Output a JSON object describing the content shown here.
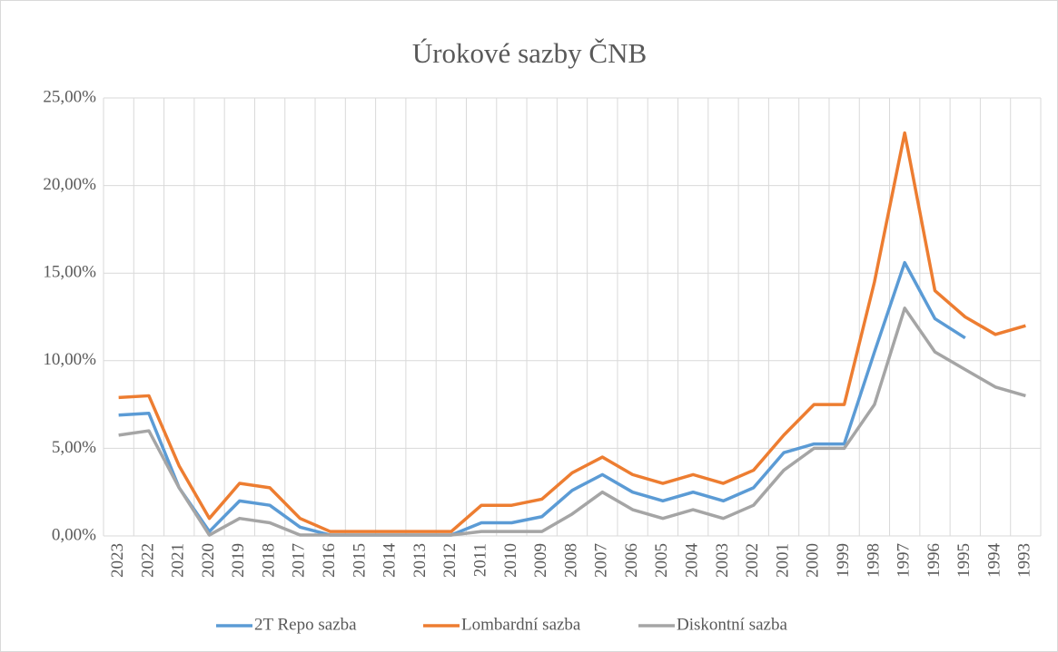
{
  "chart_data": {
    "type": "line",
    "title": "Úrokové sazby ČNB",
    "categories": [
      "2023",
      "2022",
      "2021",
      "2020",
      "2019",
      "2018",
      "2017",
      "2016",
      "2015",
      "2014",
      "2013",
      "2012",
      "2011",
      "2010",
      "2009",
      "2008",
      "2007",
      "2006",
      "2005",
      "2004",
      "2003",
      "2002",
      "2001",
      "2000",
      "1999",
      "1998",
      "1997",
      "1996",
      "1995",
      "1994",
      "1993"
    ],
    "series": [
      {
        "name": "2T Repo sazba",
        "color": "#5b9bd5",
        "values": [
          6.9,
          7.0,
          2.75,
          0.25,
          2.0,
          1.75,
          0.5,
          0.05,
          0.05,
          0.05,
          0.05,
          0.05,
          0.75,
          0.75,
          1.1,
          2.6,
          3.5,
          2.5,
          2.0,
          2.5,
          2.0,
          2.75,
          4.75,
          5.25,
          5.25,
          10.5,
          15.6,
          12.4,
          11.3,
          null,
          null
        ]
      },
      {
        "name": "Lombardní sazba",
        "color": "#ed7d31",
        "values": [
          7.9,
          8.0,
          4.0,
          1.0,
          3.0,
          2.75,
          1.0,
          0.25,
          0.25,
          0.25,
          0.25,
          0.25,
          1.75,
          1.75,
          2.1,
          3.6,
          4.5,
          3.5,
          3.0,
          3.5,
          3.0,
          3.75,
          5.75,
          7.5,
          7.5,
          14.5,
          23.0,
          14.0,
          12.5,
          11.5,
          12.0
        ]
      },
      {
        "name": "Diskontní sazba",
        "color": "#a5a5a5",
        "values": [
          5.75,
          6.0,
          2.75,
          0.05,
          1.0,
          0.75,
          0.05,
          0.05,
          0.05,
          0.05,
          0.05,
          0.05,
          0.25,
          0.25,
          0.25,
          1.25,
          2.5,
          1.5,
          1.0,
          1.5,
          1.0,
          1.75,
          3.75,
          5.0,
          5.0,
          7.5,
          13.0,
          10.5,
          9.5,
          8.5,
          8.0
        ]
      }
    ],
    "ylim": [
      0,
      25
    ],
    "yticks": [
      {
        "value": 0,
        "label": "0,00%"
      },
      {
        "value": 5,
        "label": "5,00%"
      },
      {
        "value": 10,
        "label": "10,00%"
      },
      {
        "value": 15,
        "label": "15,00%"
      },
      {
        "value": 20,
        "label": "20,00%"
      },
      {
        "value": 25,
        "label": "25,00%"
      }
    ],
    "grid": true,
    "legend": "bottom"
  }
}
